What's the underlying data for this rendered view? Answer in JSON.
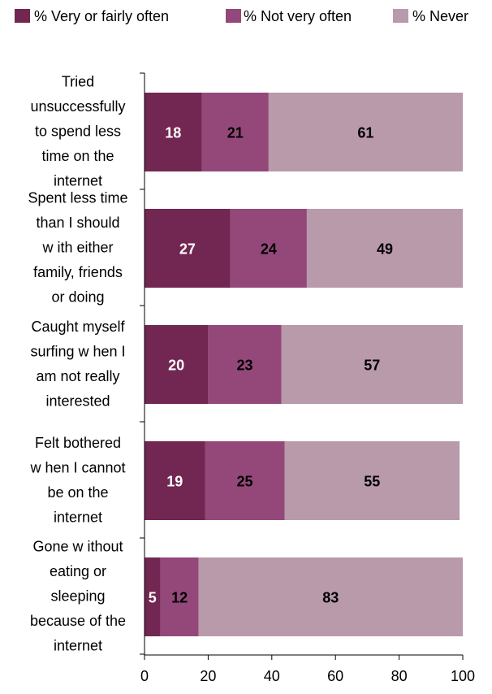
{
  "chart_data": {
    "type": "bar",
    "orientation": "horizontal",
    "stacked": true,
    "categories": [
      "Tried unsuccessfully to spend less time on the internet",
      "Spent less time than I should with either family, friends or doing",
      "Caught myself surfing when I am not really interested",
      "Felt bothered when I cannot be on the internet",
      "Gone without eating or sleeping because of the internet"
    ],
    "category_lines": [
      [
        "Tried",
        "unsuccessfully",
        "to spend less",
        "time on the",
        "internet"
      ],
      [
        "Spent less time",
        "than I should",
        "w ith either",
        "family, friends",
        "or doing"
      ],
      [
        "Caught myself",
        "surfing w hen I",
        "am not really",
        "interested"
      ],
      [
        "Felt bothered",
        "w hen I cannot",
        "be on the",
        "internet"
      ],
      [
        "Gone w ithout",
        "eating or",
        "sleeping",
        "because of the",
        "internet"
      ]
    ],
    "series": [
      {
        "name": "% Very or fairly often",
        "color": "#722652",
        "label_color": "#ffffff",
        "values": [
          18,
          27,
          20,
          19,
          5
        ]
      },
      {
        "name": "% Not very often",
        "color": "#944879",
        "label_color": "#000000",
        "values": [
          21,
          24,
          23,
          25,
          12
        ]
      },
      {
        "name": "% Never",
        "color": "#b89aab",
        "label_color": "#000000",
        "values": [
          61,
          49,
          57,
          55,
          83
        ]
      }
    ],
    "xlim": [
      0,
      100
    ],
    "xticks": [
      0,
      20,
      40,
      60,
      80,
      100
    ],
    "xlabel": "",
    "ylabel": "",
    "title": "",
    "grid": false,
    "legend_position": "top"
  }
}
